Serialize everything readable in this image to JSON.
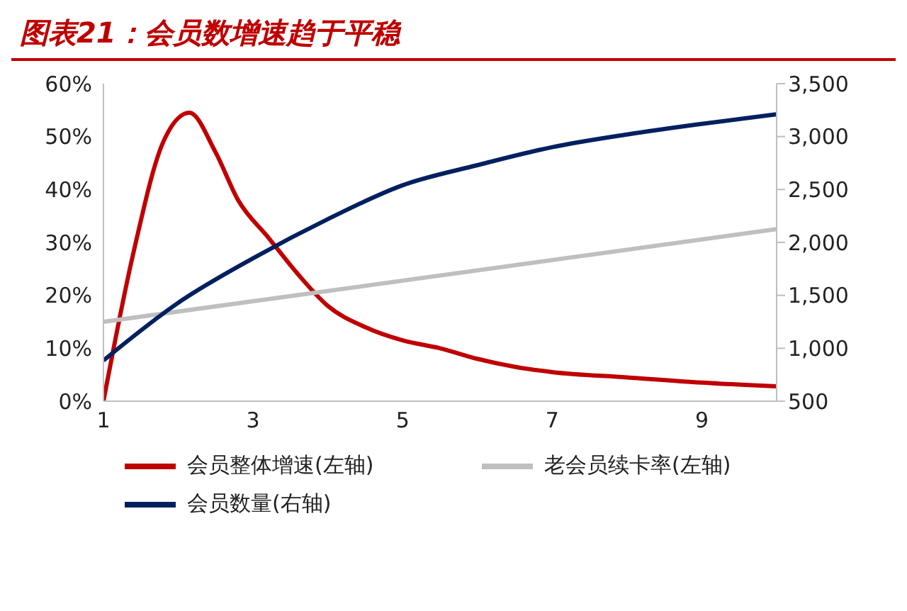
{
  "chart_data": {
    "type": "line",
    "title": "图表21：会员数增速趋于平稳",
    "xlim": [
      1,
      10
    ],
    "xticks": [
      1,
      3,
      5,
      7,
      9
    ],
    "ylim": [
      0,
      60
    ],
    "yticks": [
      {
        "value": 0,
        "label": "0%"
      },
      {
        "value": 10,
        "label": "10%"
      },
      {
        "value": 20,
        "label": "20%"
      },
      {
        "value": 30,
        "label": "30%"
      },
      {
        "value": 40,
        "label": "40%"
      },
      {
        "value": 50,
        "label": "50%"
      },
      {
        "value": 60,
        "label": "60%"
      }
    ],
    "y2lim": [
      500,
      3500
    ],
    "y2ticks": [
      {
        "value": 500,
        "label": "500"
      },
      {
        "value": 1000,
        "label": "1,000"
      },
      {
        "value": 1500,
        "label": "1,500"
      },
      {
        "value": 2000,
        "label": "2,000"
      },
      {
        "value": 2500,
        "label": "2,500"
      },
      {
        "value": 3000,
        "label": "3,000"
      },
      {
        "value": 3500,
        "label": "3,500"
      }
    ],
    "series": [
      {
        "name": "会员整体增速(左轴)",
        "color": "#c00000",
        "x": [
          1,
          1.4,
          1.8,
          2.15,
          2.5,
          2.8,
          3.2,
          3.6,
          4,
          4.5,
          5,
          5.5,
          6,
          6.5,
          7,
          8,
          9,
          10
        ],
        "values": [
          0,
          28,
          49,
          54.5,
          47,
          38,
          31,
          24,
          18,
          14,
          11.5,
          10,
          8,
          6.5,
          5.5,
          4.5,
          3.5,
          2.8
        ]
      },
      {
        "name": "老会员续卡率(左轴)",
        "color": "#bfbfbf",
        "x": [
          1,
          10
        ],
        "values": [
          15,
          32.5
        ]
      },
      {
        "name": "会员数量(右轴)",
        "color": "#002060",
        "axis": "y2",
        "x": [
          1,
          2,
          3,
          4,
          5,
          6,
          7,
          8,
          9,
          10
        ],
        "values": [
          885,
          1430,
          1850,
          2220,
          2540,
          2730,
          2900,
          3020,
          3120,
          3210
        ]
      }
    ],
    "grid": false,
    "legend": "bottom",
    "marker": "none",
    "line_style": "solid"
  }
}
